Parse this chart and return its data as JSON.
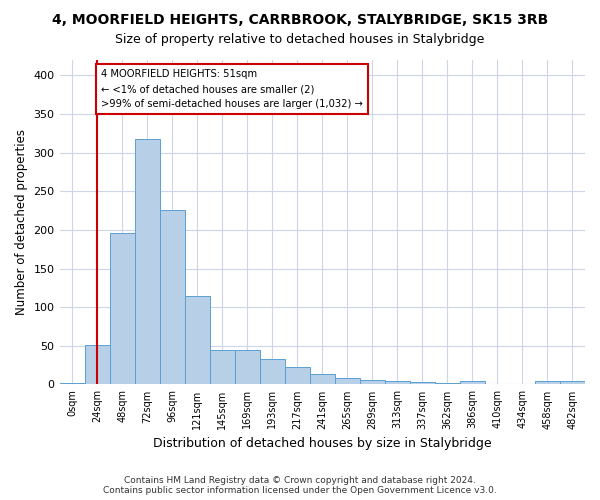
{
  "title": "4, MOORFIELD HEIGHTS, CARRBROOK, STALYBRIDGE, SK15 3RB",
  "subtitle": "Size of property relative to detached houses in Stalybridge",
  "xlabel": "Distribution of detached houses by size in Stalybridge",
  "ylabel": "Number of detached properties",
  "footer_line1": "Contains HM Land Registry data © Crown copyright and database right 2024.",
  "footer_line2": "Contains public sector information licensed under the Open Government Licence v3.0.",
  "bin_labels": [
    "0sqm",
    "24sqm",
    "48sqm",
    "72sqm",
    "96sqm",
    "121sqm",
    "145sqm",
    "169sqm",
    "193sqm",
    "217sqm",
    "241sqm",
    "265sqm",
    "289sqm",
    "313sqm",
    "337sqm",
    "362sqm",
    "386sqm",
    "410sqm",
    "434sqm",
    "458sqm",
    "482sqm"
  ],
  "bar_values": [
    2,
    51,
    196,
    318,
    226,
    114,
    45,
    45,
    33,
    22,
    13,
    8,
    6,
    5,
    3,
    2,
    4,
    0,
    0,
    5,
    4
  ],
  "bar_color": "#b8cfe8",
  "bar_edge_color": "#5a9fd4",
  "annotation_text": "4 MOORFIELD HEIGHTS: 51sqm\n← <1% of detached houses are smaller (2)\n>99% of semi-detached houses are larger (1,032) →",
  "vline_x": 1.0,
  "vline_color": "#cc0000",
  "annotation_box_color": "#cc0000",
  "ylim": [
    0,
    420
  ],
  "yticks": [
    0,
    50,
    100,
    150,
    200,
    250,
    300,
    350,
    400
  ],
  "background_color": "#ffffff",
  "grid_color": "#ccd6e8"
}
